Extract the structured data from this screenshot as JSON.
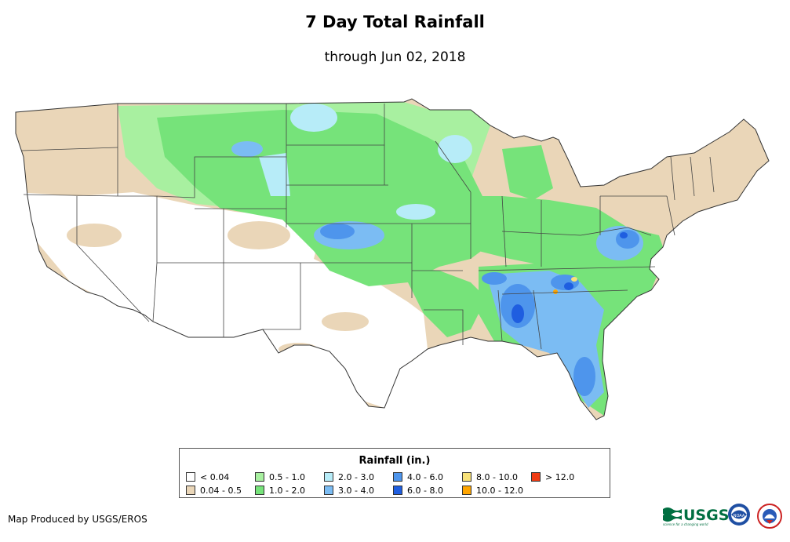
{
  "header": {
    "title": "7 Day Total Rainfall",
    "subtitle": "through Jun 02, 2018"
  },
  "legend": {
    "title": "Rainfall (in.)",
    "items": [
      {
        "label": "< 0.04",
        "color": "#ffffff"
      },
      {
        "label": "0.04 - 0.5",
        "color": "#ead6b8"
      },
      {
        "label": "0.5 - 1.0",
        "color": "#a8f0a0"
      },
      {
        "label": "1.0 - 2.0",
        "color": "#76e37a"
      },
      {
        "label": "2.0 - 3.0",
        "color": "#b7ecf8"
      },
      {
        "label": "3.0 - 4.0",
        "color": "#7bbcf3"
      },
      {
        "label": "4.0 - 6.0",
        "color": "#4e95ec"
      },
      {
        "label": "6.0 - 8.0",
        "color": "#1f5ee0"
      },
      {
        "label": "8.0 - 10.0",
        "color": "#f8e27a"
      },
      {
        "label": "10.0 - 12.0",
        "color": "#ffa500"
      },
      {
        "label": "> 12.0",
        "color": "#f03c14"
      }
    ]
  },
  "footer": {
    "credit": "Map Produced by USGS/EROS"
  },
  "logos": {
    "usgs_text": "USGS",
    "usgs_tagline": "science for a changing world",
    "noaa_text": "NOAA"
  }
}
